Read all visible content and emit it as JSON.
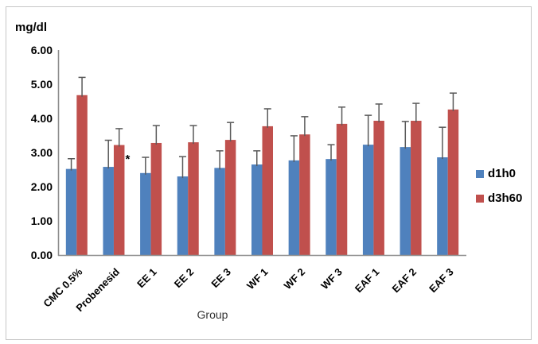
{
  "chart_data": {
    "type": "bar",
    "ylabel": "mg/dl",
    "xlabel": "Group",
    "grid": false,
    "legend_position": "right",
    "categories": [
      "CMC 0.5%",
      "Probenesid",
      "EE 1",
      "EE 2",
      "EE 3",
      "WF 1",
      "WF 2",
      "WF 3",
      "EAF 1",
      "EAF 2",
      "EAF 3"
    ],
    "series": [
      {
        "name": "d1h0",
        "color": "#4F81BD",
        "values": [
          2.52,
          2.58,
          2.4,
          2.3,
          2.55,
          2.65,
          2.77,
          2.81,
          3.23,
          3.16,
          2.86
        ],
        "errors_plus": [
          0.3,
          0.78,
          0.46,
          0.58,
          0.5,
          0.4,
          0.72,
          0.42,
          0.86,
          0.75,
          0.88
        ]
      },
      {
        "name": "d3h60",
        "color": "#C0504D",
        "values": [
          4.68,
          3.22,
          3.28,
          3.3,
          3.37,
          3.77,
          3.53,
          3.84,
          3.93,
          3.93,
          4.26
        ],
        "errors_plus": [
          0.52,
          0.48,
          0.51,
          0.49,
          0.51,
          0.51,
          0.52,
          0.49,
          0.49,
          0.51,
          0.48
        ]
      }
    ],
    "y_axis": {
      "min": 0,
      "max": 6,
      "step": 1,
      "tick_labels": [
        "0.00",
        "1.00",
        "2.00",
        "3.00",
        "4.00",
        "5.00",
        "6.00"
      ]
    },
    "annotations": [
      {
        "text": "*",
        "category": "Probenesid",
        "series": "d3h60",
        "value": 2.81
      }
    ],
    "colors": {
      "axis": "#8e8e8e",
      "error_bar": "#595959",
      "border": "#c6c6c6"
    }
  }
}
